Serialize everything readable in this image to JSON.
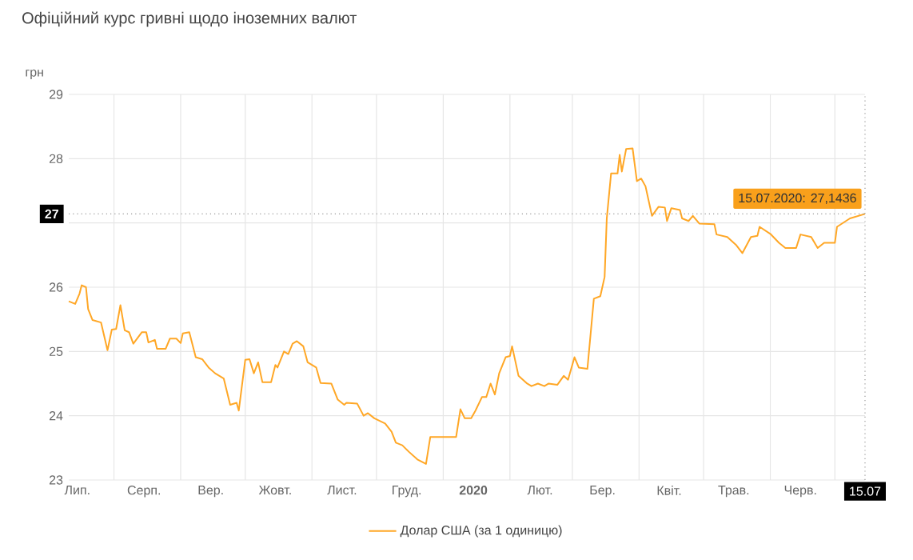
{
  "chart_data": {
    "type": "line",
    "title": "Офіційний курс гривні щодо іноземних валют",
    "ylabel": "грн",
    "xlim": [
      "2019-07-11",
      "2020-07-15"
    ],
    "xticks": [
      {
        "value": "2019-07-15",
        "label": "Лип."
      },
      {
        "value": "2019-08-01",
        "label": null
      },
      {
        "value": "2019-08-15",
        "label": "Серп."
      },
      {
        "value": "2019-09-01",
        "label": null
      },
      {
        "value": "2019-09-15",
        "label": "Вер."
      },
      {
        "value": "2019-10-01",
        "label": null
      },
      {
        "value": "2019-10-15",
        "label": "Жовт."
      },
      {
        "value": "2019-11-01",
        "label": null
      },
      {
        "value": "2019-11-15",
        "label": "Лист."
      },
      {
        "value": "2019-12-01",
        "label": null
      },
      {
        "value": "2019-12-15",
        "label": "Груд."
      },
      {
        "value": "2020-01-01",
        "label": null
      },
      {
        "value": "2020-01-15",
        "label": "2020"
      },
      {
        "value": "2020-02-01",
        "label": null
      },
      {
        "value": "2020-02-15",
        "label": "Лют."
      },
      {
        "value": "2020-03-01",
        "label": null
      },
      {
        "value": "2020-03-15",
        "label": "Бер."
      },
      {
        "value": "2020-04-01",
        "label": null
      },
      {
        "value": "2020-04-15",
        "label": "Квіт."
      },
      {
        "value": "2020-05-01",
        "label": null
      },
      {
        "value": "2020-05-15",
        "label": "Трав."
      },
      {
        "value": "2020-06-01",
        "label": null
      },
      {
        "value": "2020-06-15",
        "label": "Черв."
      },
      {
        "value": "2020-07-01",
        "label": null
      },
      {
        "value": "2020-07-15",
        "label": "15.07"
      }
    ],
    "ylim": [
      23,
      29
    ],
    "yticks": [
      23,
      24,
      25,
      26,
      {
        "value": 27,
        "label": null
      },
      28,
      29
    ],
    "grid": true,
    "legend": "bottom",
    "marker": "none",
    "line_style": "solid",
    "x": [
      "2019-07-11",
      "2019-07-14",
      "2019-07-16",
      "2019-07-17",
      "2019-07-19",
      "2019-07-20",
      "2019-07-22",
      "2019-07-26",
      "2019-07-29",
      "2019-07-31",
      "2019-08-02",
      "2019-08-04",
      "2019-08-06",
      "2019-08-08",
      "2019-08-10",
      "2019-08-14",
      "2019-08-16",
      "2019-08-17",
      "2019-08-20",
      "2019-08-21",
      "2019-08-25",
      "2019-08-27",
      "2019-08-30",
      "2019-09-01",
      "2019-09-02",
      "2019-09-05",
      "2019-09-08",
      "2019-09-11",
      "2019-09-14",
      "2019-09-17",
      "2019-09-21",
      "2019-09-24",
      "2019-09-27",
      "2019-09-28",
      "2019-10-01",
      "2019-10-03",
      "2019-10-05",
      "2019-10-07",
      "2019-10-09",
      "2019-10-13",
      "2019-10-15",
      "2019-10-16",
      "2019-10-19",
      "2019-10-21",
      "2019-10-23",
      "2019-10-25",
      "2019-10-28",
      "2019-10-30",
      "2019-11-03",
      "2019-11-05",
      "2019-11-10",
      "2019-11-13",
      "2019-11-16",
      "2019-11-17",
      "2019-11-22",
      "2019-11-25",
      "2019-11-27",
      "2019-11-30",
      "2019-12-05",
      "2019-12-08",
      "2019-12-10",
      "2019-12-13",
      "2019-12-16",
      "2019-12-20",
      "2019-12-24",
      "2019-12-26",
      "2019-12-31",
      "2020-01-07",
      "2020-01-09",
      "2020-01-11",
      "2020-01-14",
      "2020-01-16",
      "2020-01-19",
      "2020-01-21",
      "2020-01-23",
      "2020-01-25",
      "2020-01-27",
      "2020-01-30",
      "2020-02-01",
      "2020-02-02",
      "2020-02-05",
      "2020-02-09",
      "2020-02-11",
      "2020-02-14",
      "2020-02-17",
      "2020-02-19",
      "2020-02-23",
      "2020-02-26",
      "2020-02-28",
      "2020-03-02",
      "2020-03-04",
      "2020-03-08",
      "2020-03-11",
      "2020-03-14",
      "2020-03-16",
      "2020-03-17",
      "2020-03-19",
      "2020-03-22",
      "2020-03-23",
      "2020-03-24",
      "2020-03-26",
      "2020-03-29",
      "2020-03-31",
      "2020-04-02",
      "2020-04-04",
      "2020-04-07",
      "2020-04-10",
      "2020-04-13",
      "2020-04-14",
      "2020-04-16",
      "2020-04-20",
      "2020-04-21",
      "2020-04-24",
      "2020-04-26",
      "2020-04-29",
      "2020-05-06",
      "2020-05-07",
      "2020-05-12",
      "2020-05-16",
      "2020-05-19",
      "2020-05-23",
      "2020-05-26",
      "2020-05-27",
      "2020-06-01",
      "2020-06-05",
      "2020-06-08",
      "2020-06-13",
      "2020-06-15",
      "2020-06-20",
      "2020-06-23",
      "2020-06-26",
      "2020-07-01",
      "2020-07-02",
      "2020-07-08",
      "2020-07-15"
    ],
    "series": [
      {
        "name": "Долар США (за 1 одиницю)",
        "color": "#ffa726",
        "values": [
          25.78,
          25.74,
          25.9,
          26.03,
          26.0,
          25.66,
          25.49,
          25.45,
          25.02,
          25.34,
          25.35,
          25.72,
          25.33,
          25.3,
          25.12,
          25.3,
          25.3,
          25.14,
          25.18,
          25.04,
          25.04,
          25.2,
          25.2,
          25.13,
          25.28,
          25.3,
          24.91,
          24.88,
          24.75,
          24.66,
          24.58,
          24.17,
          24.2,
          24.08,
          24.87,
          24.88,
          24.66,
          24.83,
          24.52,
          24.52,
          24.79,
          24.75,
          25.0,
          24.96,
          25.12,
          25.16,
          25.08,
          24.83,
          24.75,
          24.51,
          24.5,
          24.25,
          24.17,
          24.2,
          24.19,
          24.0,
          24.04,
          23.96,
          23.88,
          23.75,
          23.58,
          23.54,
          23.44,
          23.32,
          23.25,
          23.67,
          23.67,
          23.67,
          24.1,
          23.96,
          23.96,
          24.08,
          24.29,
          24.29,
          24.5,
          24.33,
          24.66,
          24.91,
          24.93,
          25.08,
          24.62,
          24.5,
          24.46,
          24.5,
          24.46,
          24.5,
          24.48,
          24.62,
          24.56,
          24.91,
          24.75,
          24.73,
          25.82,
          25.86,
          26.16,
          27.07,
          27.77,
          27.77,
          28.06,
          27.8,
          28.15,
          28.16,
          27.65,
          27.69,
          27.57,
          27.11,
          27.25,
          27.24,
          27.03,
          27.23,
          27.2,
          27.07,
          27.03,
          27.11,
          26.99,
          26.98,
          26.82,
          26.78,
          26.66,
          26.53,
          26.78,
          26.8,
          26.94,
          26.83,
          26.69,
          26.61,
          26.61,
          26.82,
          26.78,
          26.61,
          26.69,
          26.69,
          26.94,
          27.07,
          27.14
        ]
      }
    ],
    "ref_lines": [
      {
        "axis": "y",
        "value": 27.14,
        "label": "27",
        "color": "#999999",
        "line_style": "dotted"
      },
      {
        "axis": "x",
        "value": "2020-07-15",
        "color": "#999999",
        "line_style": "dotted"
      }
    ],
    "annotations": [
      {
        "text": "15.07.2020: 27,1436",
        "x": "2020-07-15",
        "y": 27.14
      }
    ]
  }
}
